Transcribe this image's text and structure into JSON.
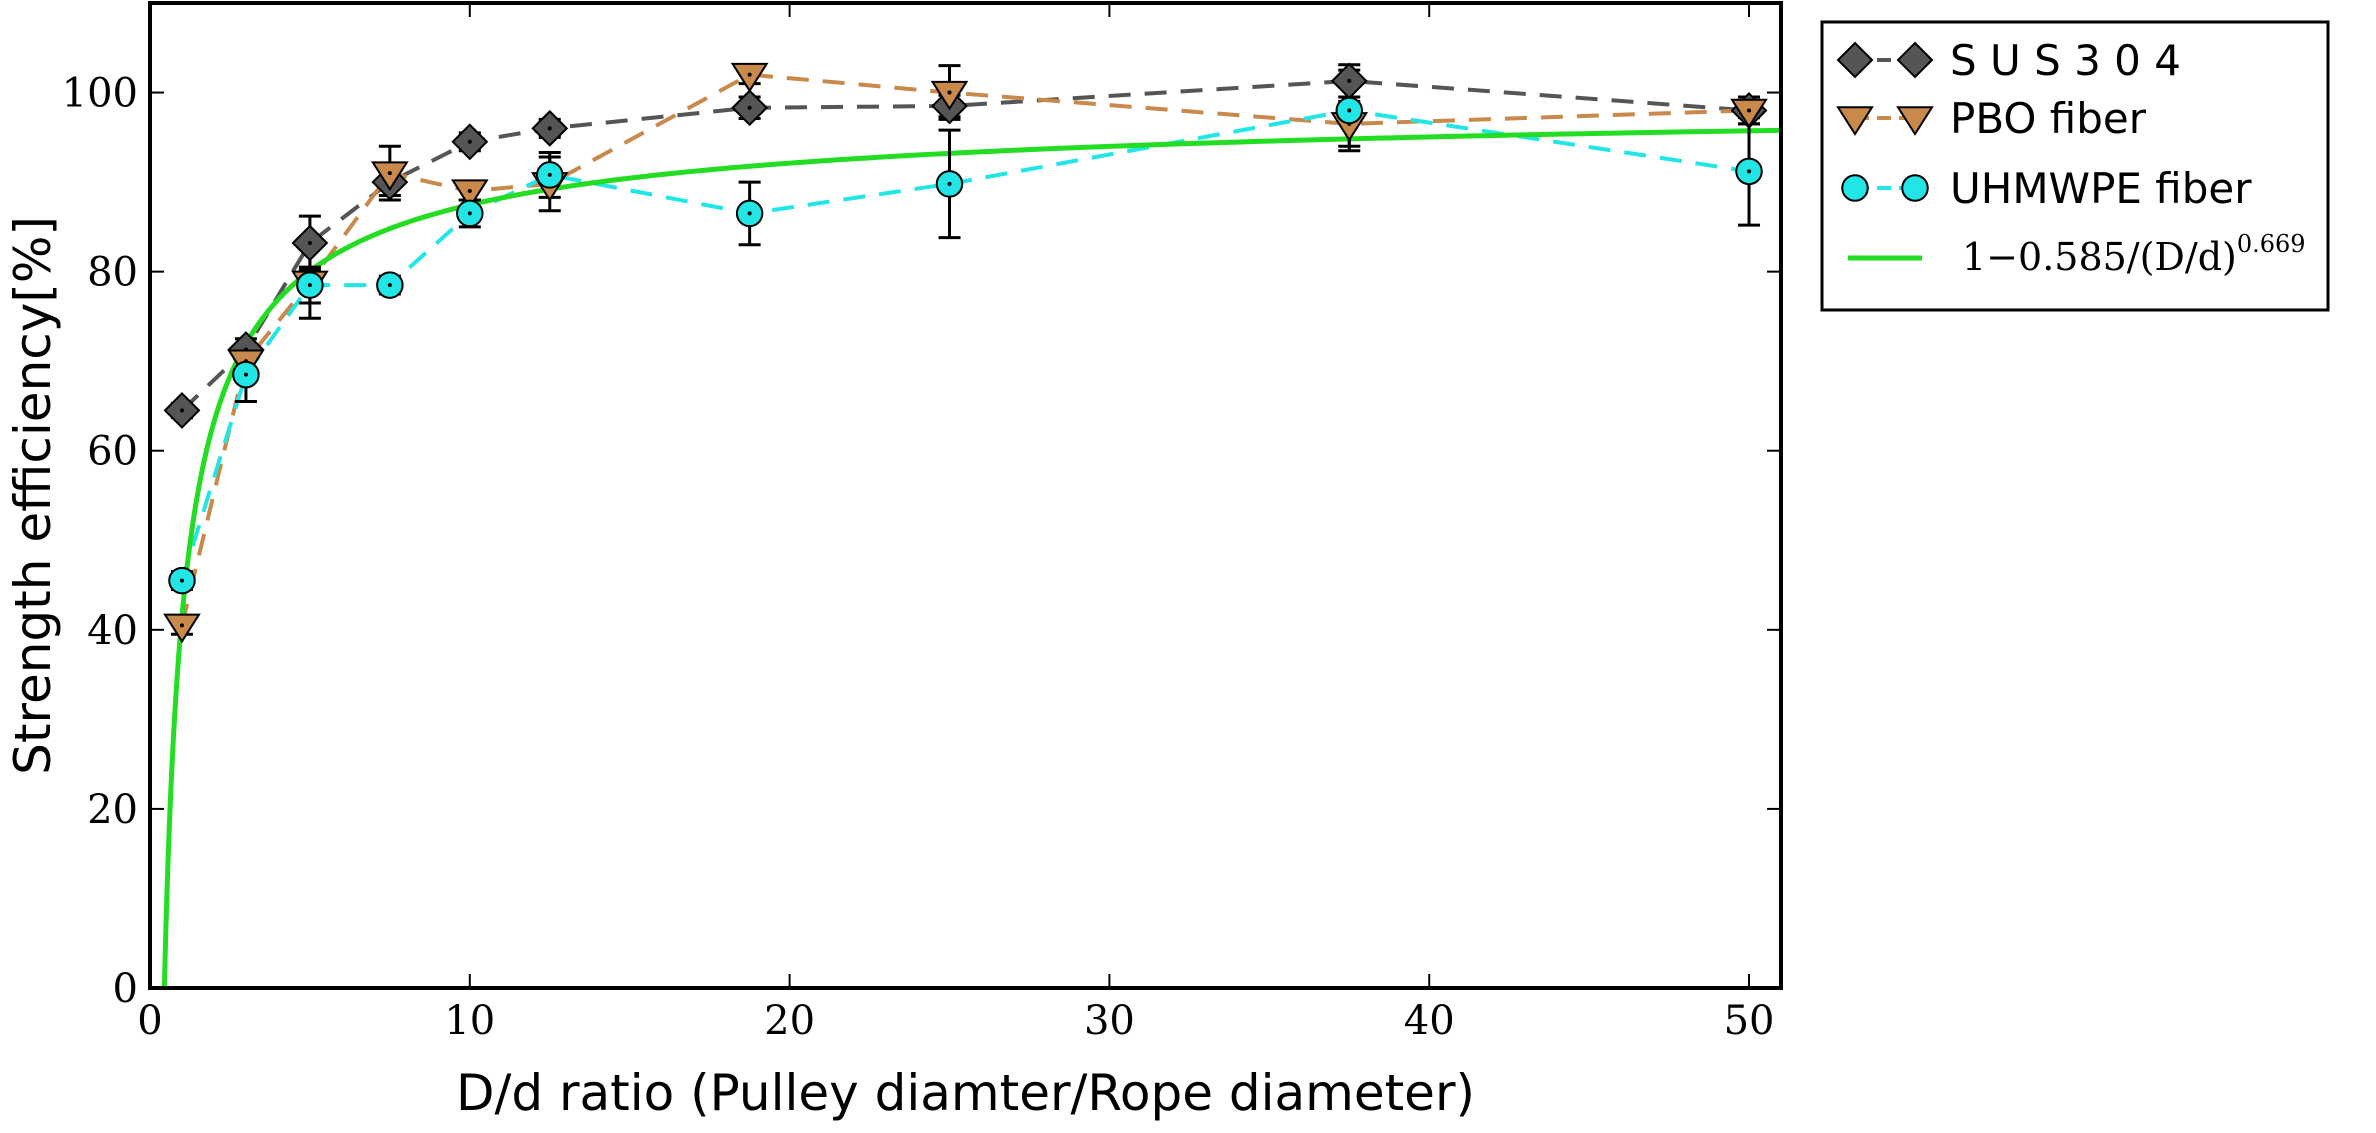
{
  "chart_data": {
    "type": "scatter",
    "xlabel": "D/d ratio (Pulley diamter/Rope diameter)",
    "ylabel": "Strength efficiency[%]",
    "xlim": [
      0,
      51
    ],
    "ylim": [
      0,
      110
    ],
    "xticks": [
      0,
      10,
      20,
      30,
      40,
      50
    ],
    "yticks": [
      0,
      20,
      40,
      60,
      80,
      100
    ],
    "xtick_labels": [
      "0",
      "10",
      "20",
      "30",
      "40",
      "50"
    ],
    "ytick_labels": [
      "0",
      "20",
      "40",
      "60",
      "80",
      "100"
    ],
    "grid": false,
    "legend_position": "outside-top-right",
    "series": [
      {
        "name": "S U S 3 0 4",
        "marker": "diamond",
        "color": "#555555",
        "line_color": "#555555",
        "line_style": "dashed",
        "x": [
          1,
          3,
          5,
          7.5,
          10,
          12.5,
          18.75,
          25,
          37.5,
          50
        ],
        "y": [
          64.5,
          71.3,
          83.2,
          90.0,
          94.5,
          96.0,
          98.3,
          98.5,
          101.3,
          98.0
        ],
        "err": [
          0.8,
          1.2,
          3.0,
          1.5,
          1.0,
          1.0,
          1.2,
          1.2,
          1.8,
          1.5
        ]
      },
      {
        "name": "PBO fiber",
        "marker": "triangle-down",
        "color": "#c8894a",
        "line_color": "#c8894a",
        "line_style": "dashed",
        "x": [
          1,
          3,
          5,
          7.5,
          10,
          12.5,
          18.75,
          25,
          37.5,
          50
        ],
        "y": [
          40.5,
          70.0,
          78.8,
          91.0,
          89.0,
          89.8,
          102.0,
          100.0,
          96.5,
          98.0
        ],
        "err": [
          1.0,
          1.5,
          4.0,
          3.0,
          1.0,
          3.0,
          1.0,
          3.0,
          2.5,
          1.5
        ]
      },
      {
        "name": "UHMWPE fiber",
        "marker": "circle",
        "color": "#22e6e6",
        "line_color": "#22e6e6",
        "line_style": "dashed",
        "x": [
          1,
          3,
          5,
          7.5,
          10,
          12.5,
          18.75,
          25,
          37.5,
          50
        ],
        "y": [
          45.5,
          68.5,
          78.5,
          78.5,
          86.5,
          90.8,
          86.5,
          89.8,
          98.0,
          91.2
        ],
        "err": [
          1.0,
          3.0,
          2.0,
          1.0,
          1.5,
          2.5,
          3.5,
          6.0,
          4.5,
          6.0
        ]
      }
    ],
    "fit": {
      "name_prefix": "1−0.585/(D/d)",
      "name_exponent": "0.669",
      "a": 0.585,
      "b": 0.669,
      "color": "#22dd22",
      "x_start": 0.45,
      "x_end": 51
    }
  }
}
